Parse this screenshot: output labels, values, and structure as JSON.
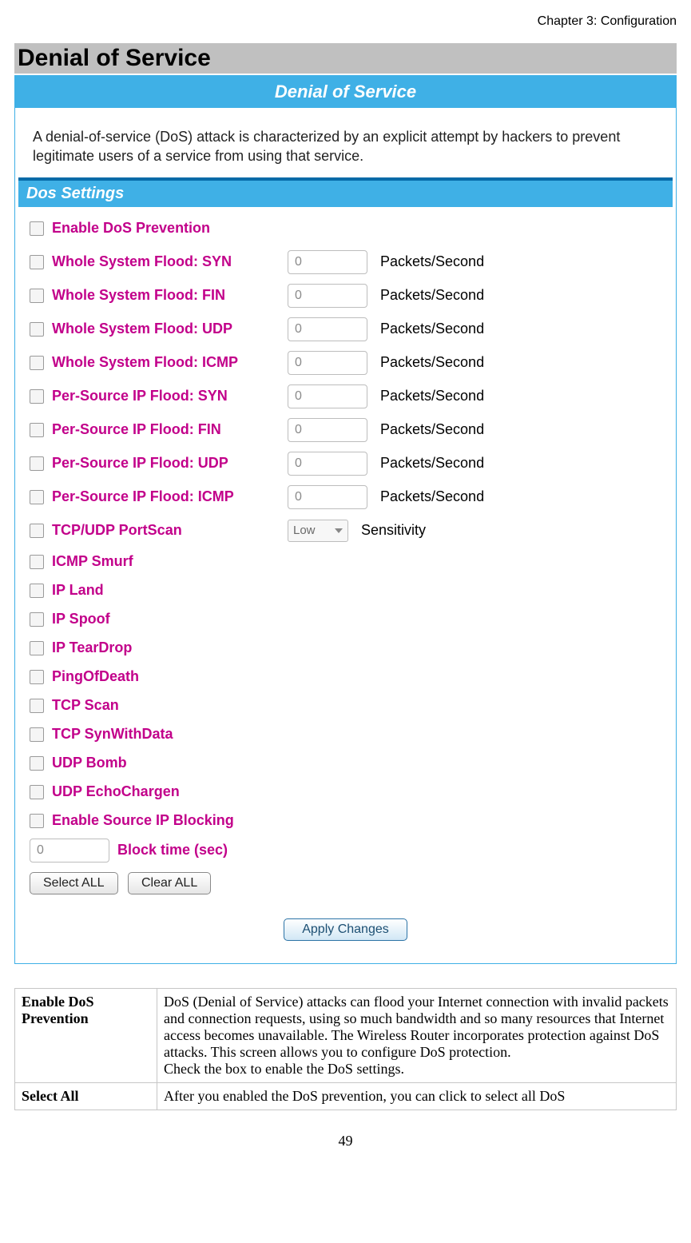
{
  "chapter_header": "Chapter 3: Configuration",
  "section_title": "Denial of Service",
  "banner": "Denial of Service",
  "intro": "A denial-of-service (DoS) attack is characterized by an explicit attempt by hackers to prevent legitimate users of a service from using that service.",
  "sub_header": "Dos Settings",
  "options": [
    {
      "label": "Enable DoS Prevention"
    },
    {
      "label": "Whole System Flood: SYN",
      "value": "0",
      "unit": "Packets/Second"
    },
    {
      "label": "Whole System Flood: FIN",
      "value": "0",
      "unit": "Packets/Second"
    },
    {
      "label": "Whole System Flood: UDP",
      "value": "0",
      "unit": "Packets/Second"
    },
    {
      "label": "Whole System Flood: ICMP",
      "value": "0",
      "unit": "Packets/Second"
    },
    {
      "label": "Per-Source IP Flood: SYN",
      "value": "0",
      "unit": "Packets/Second"
    },
    {
      "label": "Per-Source IP Flood: FIN",
      "value": "0",
      "unit": "Packets/Second"
    },
    {
      "label": "Per-Source IP Flood: UDP",
      "value": "0",
      "unit": "Packets/Second"
    },
    {
      "label": "Per-Source IP Flood: ICMP",
      "value": "0",
      "unit": "Packets/Second"
    },
    {
      "label": "TCP/UDP PortScan",
      "select": "Low",
      "unit": "Sensitivity"
    },
    {
      "label": "ICMP Smurf"
    },
    {
      "label": "IP Land"
    },
    {
      "label": "IP Spoof"
    },
    {
      "label": "IP TearDrop"
    },
    {
      "label": "PingOfDeath"
    },
    {
      "label": "TCP Scan"
    },
    {
      "label": "TCP SynWithData"
    },
    {
      "label": "UDP Bomb"
    },
    {
      "label": "UDP EchoChargen"
    },
    {
      "label": "Enable Source IP Blocking"
    }
  ],
  "block_time": {
    "value": "0",
    "label": "Block time (sec)"
  },
  "buttons": {
    "select_all": "Select ALL",
    "clear_all": "Clear ALL",
    "apply": "Apply Changes"
  },
  "table": {
    "rows": [
      {
        "left": "Enable DoS Prevention",
        "right": "DoS (Denial of Service) attacks can flood your Internet connection with invalid packets and connection requests, using so much bandwidth and so many resources that Internet access becomes unavailable. The Wireless Router incorporates protection against DoS attacks. This screen allows you to configure DoS protection.\nCheck the box to enable the DoS settings."
      },
      {
        "left": "Select All",
        "right": "After you enabled the DoS prevention, you can click to select all DoS"
      }
    ]
  },
  "page_number": "49",
  "colors": {
    "banner_bg": "#3fb0e6",
    "accent_label": "#c2008a",
    "section_bg": "#c0c0c0",
    "hr": "#066aa8"
  }
}
